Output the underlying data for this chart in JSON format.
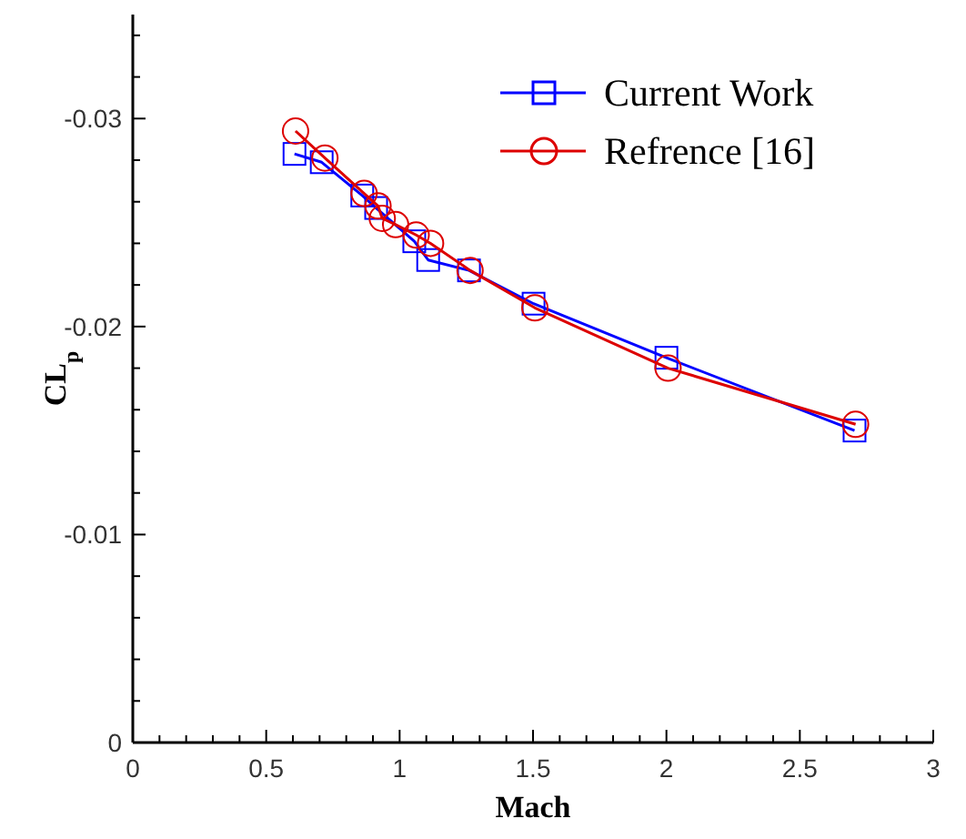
{
  "chart_data": {
    "type": "line",
    "xlabel": "Mach",
    "ylabel": "CL$_{p}$",
    "xlim": [
      0,
      3
    ],
    "ylim": [
      0,
      -0.035
    ],
    "xticks": [
      0,
      {
        "value": 0.1,
        "label": null
      },
      {
        "value": 0.2,
        "label": null
      },
      {
        "value": 0.3,
        "label": null
      },
      {
        "value": 0.4,
        "label": null
      },
      0.5,
      {
        "value": 0.6,
        "label": null
      },
      {
        "value": 0.7,
        "label": null
      },
      {
        "value": 0.8,
        "label": null
      },
      {
        "value": 0.9,
        "label": null
      },
      1,
      {
        "value": 1.1,
        "label": null
      },
      {
        "value": 1.2,
        "label": null
      },
      {
        "value": 1.3,
        "label": null
      },
      {
        "value": 1.4,
        "label": null
      },
      1.5,
      {
        "value": 1.6,
        "label": null
      },
      {
        "value": 1.7,
        "label": null
      },
      {
        "value": 1.8,
        "label": null
      },
      {
        "value": 1.9,
        "label": null
      },
      2,
      {
        "value": 2.1,
        "label": null
      },
      {
        "value": 2.2,
        "label": null
      },
      {
        "value": 2.3,
        "label": null
      },
      {
        "value": 2.4,
        "label": null
      },
      2.5,
      {
        "value": 2.6,
        "label": null
      },
      {
        "value": 2.7,
        "label": null
      },
      {
        "value": 2.8,
        "label": null
      },
      {
        "value": 2.9,
        "label": null
      },
      3
    ],
    "yticks": [
      0,
      {
        "value": -0.002,
        "label": null
      },
      {
        "value": -0.004,
        "label": null
      },
      {
        "value": -0.006,
        "label": null
      },
      {
        "value": -0.008,
        "label": null
      },
      -0.01,
      {
        "value": -0.012,
        "label": null
      },
      {
        "value": -0.014,
        "label": null
      },
      {
        "value": -0.016,
        "label": null
      },
      {
        "value": -0.018,
        "label": null
      },
      -0.02,
      {
        "value": -0.022,
        "label": null
      },
      {
        "value": -0.024,
        "label": null
      },
      {
        "value": -0.026,
        "label": null
      },
      {
        "value": -0.028,
        "label": null
      },
      -0.03,
      {
        "value": -0.032,
        "label": null
      },
      {
        "value": -0.034,
        "label": null
      }
    ],
    "grid": false,
    "legend": "top right",
    "line_style": "solid",
    "series": [
      {
        "name": "Current Work",
        "color": "#0000ff",
        "marker": "square",
        "x": [
          0.606,
          0.708,
          0.86,
          0.912,
          1.055,
          1.107,
          1.26,
          1.502,
          2.0,
          2.705
        ],
        "values": [
          -0.0283,
          -0.0279,
          -0.0263,
          -0.0257,
          -0.0241,
          -0.0232,
          -0.0227,
          -0.0211,
          -0.0185,
          -0.015
        ]
      },
      {
        "name": "Refrence [16]",
        "color": "#dd0000",
        "marker": "circle",
        "x": [
          0.61,
          0.72,
          0.867,
          0.919,
          0.935,
          0.985,
          1.062,
          1.116,
          1.264,
          1.507,
          2.006,
          2.709
        ],
        "values": [
          -0.0294,
          -0.0281,
          -0.0264,
          -0.0258,
          -0.0252,
          -0.0249,
          -0.0244,
          -0.024,
          -0.0227,
          -0.0209,
          -0.018,
          -0.0153
        ]
      }
    ]
  }
}
